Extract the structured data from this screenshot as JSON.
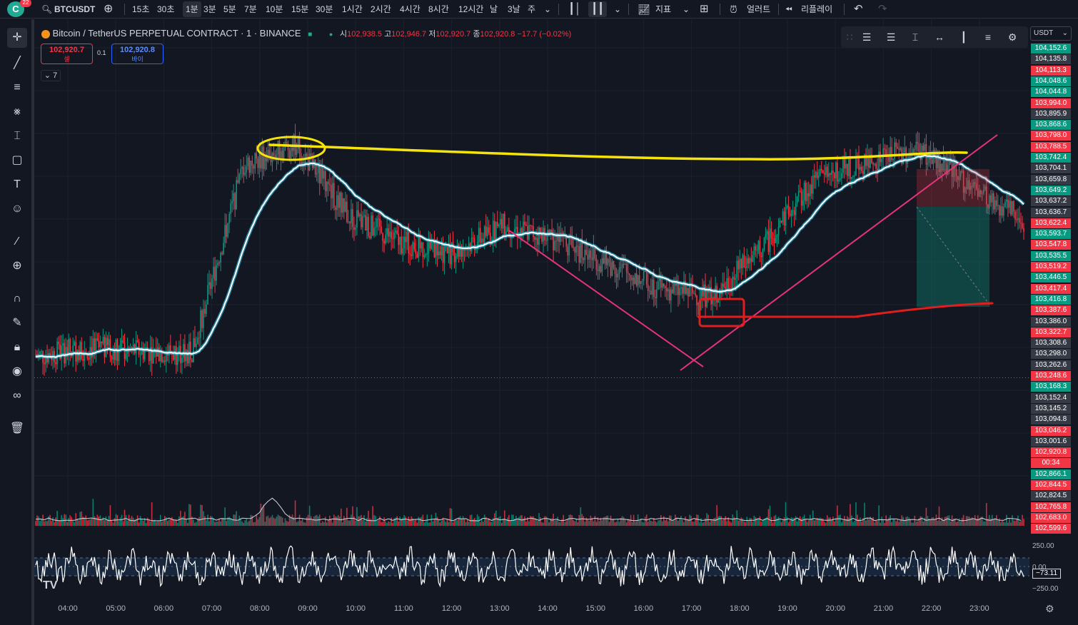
{
  "topbar": {
    "badge": "22",
    "logo": "C",
    "symbol": "BTCUSDT",
    "intervals": [
      "15초",
      "30초",
      "1분",
      "3분",
      "5분",
      "7분",
      "10분",
      "15분",
      "30분",
      "1시간",
      "2시간",
      "4시간",
      "8시간",
      "12시간",
      "날",
      "3날",
      "주"
    ],
    "active_interval": "1분",
    "indicators_label": "지표",
    "alert_label": "얼러트",
    "replay_label": "리플레이"
  },
  "legend": {
    "title": "Bitcoin / TetherUS PERPETUAL CONTRACT · 1 · BINANCE",
    "open_label": "시",
    "open": "102,938.5",
    "high_label": "고",
    "high": "102,946.7",
    "low_label": "저",
    "low": "102,920.7",
    "close_label": "종",
    "close": "102,920.8",
    "change": "−17.7 (−0.02%)",
    "sell_price": "102,920.7",
    "sell_label": "셀",
    "spread": "0.1",
    "buy_price": "102,920.8",
    "buy_label": "바이",
    "collapse_count": "7"
  },
  "price_axis": {
    "currency": "USDT",
    "labels": [
      {
        "v": "104,152.6",
        "c": "#089981"
      },
      {
        "v": "104,135.8",
        "c": "#363a45"
      },
      {
        "v": "104,113.3",
        "c": "#f23645"
      },
      {
        "v": "104,048.6",
        "c": "#089981"
      },
      {
        "v": "104,044.8",
        "c": "#089981"
      },
      {
        "v": "103,994.0",
        "c": "#f23645"
      },
      {
        "v": "103,895.9",
        "c": "#363a45"
      },
      {
        "v": "103,868.6",
        "c": "#089981"
      },
      {
        "v": "103,798.0",
        "c": "#f23645"
      },
      {
        "v": "103,788.5",
        "c": "#f23645"
      },
      {
        "v": "103,742.4",
        "c": "#089981"
      },
      {
        "v": "103,704.1",
        "c": "#363a45"
      },
      {
        "v": "103,659.8",
        "c": "#363a45"
      },
      {
        "v": "103,649.2",
        "c": "#089981"
      },
      {
        "v": "103,637.2",
        "c": "#363a45"
      },
      {
        "v": "103,636.7",
        "c": "#363a45"
      },
      {
        "v": "103,622.4",
        "c": "#f23645"
      },
      {
        "v": "103,593.7",
        "c": "#089981"
      },
      {
        "v": "103,547.8",
        "c": "#f23645"
      },
      {
        "v": "103,535.5",
        "c": "#089981"
      },
      {
        "v": "103,519.2",
        "c": "#f23645"
      },
      {
        "v": "103,446.5",
        "c": "#089981"
      },
      {
        "v": "103,417.4",
        "c": "#f23645"
      },
      {
        "v": "103,416.8",
        "c": "#089981"
      },
      {
        "v": "103,387.6",
        "c": "#f23645"
      },
      {
        "v": "103,386.0",
        "c": "#363a45"
      },
      {
        "v": "103,322.7",
        "c": "#f23645"
      },
      {
        "v": "103,308.6",
        "c": "#363a45"
      },
      {
        "v": "103,298.0",
        "c": "#363a45"
      },
      {
        "v": "103,262.6",
        "c": "#363a45"
      },
      {
        "v": "103,248.6",
        "c": "#f23645"
      },
      {
        "v": "103,168.3",
        "c": "#089981"
      },
      {
        "v": "103,152.4",
        "c": "#363a45"
      },
      {
        "v": "103,145.2",
        "c": "#363a45"
      },
      {
        "v": "103,094.8",
        "c": "#363a45"
      },
      {
        "v": "103,046.2",
        "c": "#f23645"
      },
      {
        "v": "103,001.6",
        "c": "#363a45"
      },
      {
        "v": "102,920.8",
        "c": "#f23645"
      },
      {
        "v": "00:34",
        "c": "#f23645"
      },
      {
        "v": "102,866.1",
        "c": "#089981"
      },
      {
        "v": "102,844.5",
        "c": "#f23645"
      },
      {
        "v": "102,824.5",
        "c": "#363a45"
      },
      {
        "v": "102,765.8",
        "c": "#f23645"
      },
      {
        "v": "102,683.0",
        "c": "#f23645"
      },
      {
        "v": "102,599.6",
        "c": "#f23645"
      }
    ]
  },
  "time_axis": [
    "04:00",
    "05:00",
    "06:00",
    "07:00",
    "08:00",
    "09:00",
    "10:00",
    "11:00",
    "12:00",
    "13:00",
    "14:00",
    "15:00",
    "16:00",
    "17:00",
    "18:00",
    "19:00",
    "20:00",
    "21:00",
    "22:00",
    "23:00"
  ],
  "oscillator": {
    "upper": "250.00",
    "mid": "0.00",
    "lower": "−250.00",
    "value": "−73.11"
  },
  "colors": {
    "up": "#089981",
    "down": "#f23645",
    "ma": "#ffffff",
    "ma_glow": "#2ec4e6",
    "annotation_yellow": "#f5e30a",
    "annotation_red": "#e01e1e",
    "trendline": "#e5337a"
  },
  "icons": {
    "left": [
      "crosshair-icon",
      "trendline-icon",
      "fib-icon",
      "pattern-icon",
      "measure-icon",
      "shape-icon",
      "text-icon",
      "emoji-icon",
      "ruler-icon",
      "zoom-icon",
      "magnet-icon",
      "lock-draw-icon",
      "lock-icon",
      "eye-icon",
      "link-icon",
      "trash-icon"
    ]
  },
  "chart_data": {
    "type": "candlestick",
    "title": "Bitcoin / TetherUS PERPETUAL CONTRACT · 1 · BINANCE",
    "xlabel": "",
    "ylabel": "",
    "x": [
      "04:00",
      "05:00",
      "06:00",
      "07:00",
      "08:00",
      "09:00",
      "10:00",
      "11:00",
      "12:00",
      "13:00",
      "14:00",
      "15:00",
      "16:00",
      "17:00",
      "18:00",
      "19:00",
      "20:00",
      "21:00",
      "22:00",
      "23:00"
    ],
    "series": [
      {
        "values": [
          103000,
          103030,
          103020,
          103010,
          103700,
          103780,
          103520,
          103420,
          103380,
          103480,
          103430,
          103340,
          103250,
          103220,
          103400,
          103650,
          103720,
          103760,
          103620,
          103500
        ]
      }
    ],
    "ylim": [
      102560,
      104160
    ],
    "last_price": 102920.8
  }
}
